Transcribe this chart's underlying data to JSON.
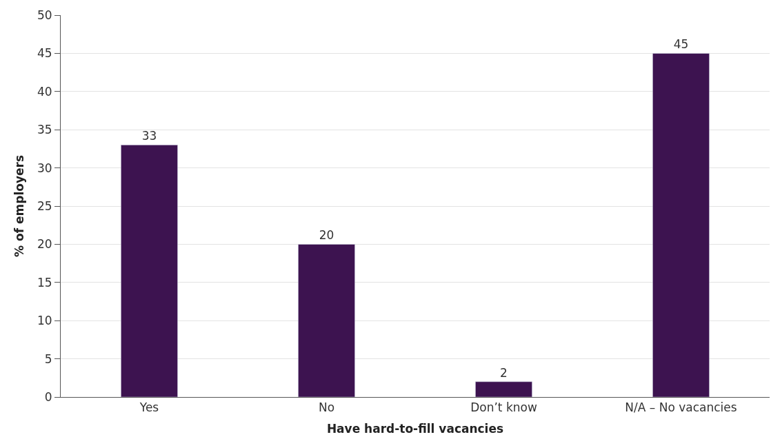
{
  "chart_data": {
    "type": "bar",
    "xlabel": "Have hard-to-fill vacancies",
    "ylabel": "% of employers",
    "categories": [
      "Yes",
      "No",
      "Don’t know",
      "N/A – No vacancies"
    ],
    "values": [
      33,
      20,
      2,
      45
    ],
    "color": "#3d1350",
    "ylim": [
      0,
      50
    ],
    "yticks": [
      0,
      5,
      10,
      15,
      20,
      25,
      30,
      35,
      40,
      45,
      50
    ],
    "grid": "y",
    "data_labels": true
  }
}
